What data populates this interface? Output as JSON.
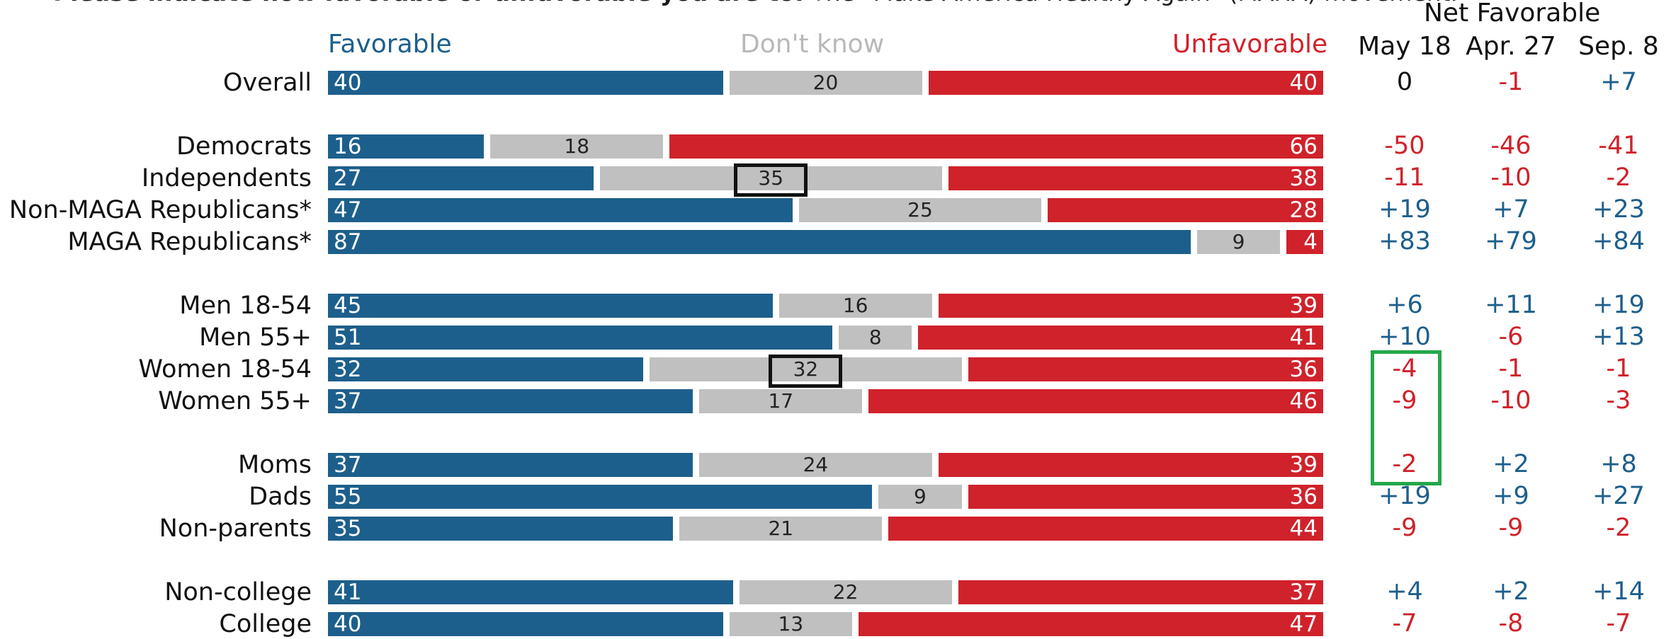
{
  "question": {
    "bold": "Please indicate how favorable or unfavorable you are to:",
    "rest": " The \"Make America Healthy Again\" (MAHA) movement."
  },
  "headers": {
    "favorable": "Favorable",
    "dont_know": "Don't know",
    "unfavorable": "Unfavorable",
    "net_favorable": "Net Favorable",
    "net_columns": [
      "May 18",
      "Apr. 27",
      "Sep. 8"
    ]
  },
  "colors": {
    "favorable": "#1d5f8c",
    "dont_know": "#c0c0c0",
    "unfavorable": "#d0222b",
    "net_positive": "#1d5f8c",
    "net_negative": "#d0222b",
    "net_zero": "#111111",
    "highlight_box": "#111111",
    "highlight_green": "#22a84a"
  },
  "chart_data": {
    "type": "bar",
    "stacked": true,
    "categories": [
      "Overall",
      "Democrats",
      "Independents",
      "Non-MAGA Republicans*",
      "MAGA Republicans*",
      "Men 18-54",
      "Men 55+",
      "Women 18-54",
      "Women 55+",
      "Moms",
      "Dads",
      "Non-parents",
      "Non-college",
      "College"
    ],
    "groups": [
      [
        0
      ],
      [
        1,
        2,
        3,
        4
      ],
      [
        5,
        6,
        7,
        8
      ],
      [
        9,
        10,
        11
      ],
      [
        12,
        13
      ]
    ],
    "series": [
      {
        "name": "Favorable",
        "values": [
          40,
          16,
          27,
          47,
          87,
          45,
          51,
          32,
          37,
          37,
          55,
          35,
          41,
          40
        ]
      },
      {
        "name": "Don't know",
        "values": [
          20,
          18,
          35,
          25,
          9,
          16,
          8,
          32,
          17,
          24,
          9,
          21,
          22,
          13
        ]
      },
      {
        "name": "Unfavorable",
        "values": [
          40,
          66,
          38,
          28,
          4,
          39,
          41,
          36,
          46,
          39,
          36,
          44,
          37,
          47
        ]
      }
    ],
    "net_favorable": {
      "columns": [
        "May 18",
        "Apr. 27",
        "Sep. 8"
      ],
      "values": [
        [
          "0",
          "-1",
          "+7"
        ],
        [
          "-50",
          "-46",
          "-41"
        ],
        [
          "-11",
          "-10",
          "-2"
        ],
        [
          "+19",
          "+7",
          "+23"
        ],
        [
          "+83",
          "+79",
          "+84"
        ],
        [
          "+6",
          "+11",
          "+19"
        ],
        [
          "+10",
          "-6",
          "+13"
        ],
        [
          "-4",
          "-1",
          "-1"
        ],
        [
          "-9",
          "-10",
          "-3"
        ],
        [
          "-2",
          "+2",
          "+8"
        ],
        [
          "+19",
          "+9",
          "+27"
        ],
        [
          "-9",
          "-9",
          "-2"
        ],
        [
          "+4",
          "+2",
          "+14"
        ],
        [
          "-7",
          "-8",
          "-7"
        ]
      ]
    },
    "highlighted_dont_know": [
      "Independents",
      "Women 18-54"
    ],
    "highlighted_net": {
      "column": "May 18",
      "rows": [
        "Women 18-54",
        "Women 55+",
        "Moms"
      ]
    }
  }
}
